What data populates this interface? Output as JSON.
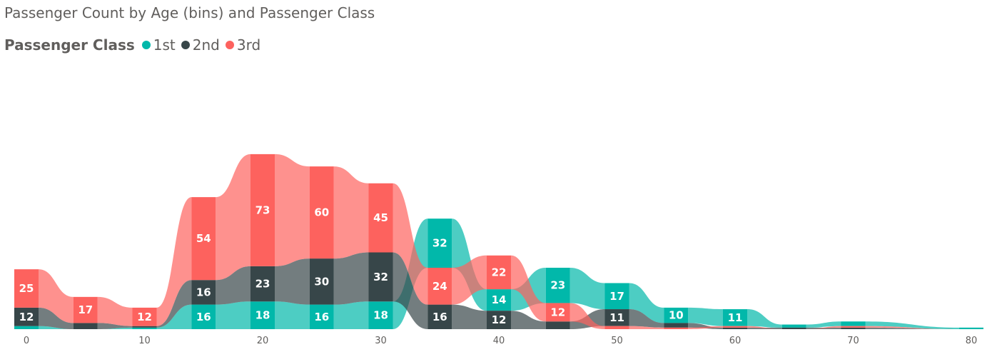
{
  "chart_data": {
    "type": "ribbon",
    "title": "Passenger Count by Age (bins) and Passenger Class",
    "legend": {
      "title": "Passenger Class",
      "position": "top-left",
      "items": [
        "1st",
        "2nd",
        "3rd"
      ]
    },
    "x": [
      0,
      5,
      10,
      15,
      20,
      25,
      30,
      35,
      40,
      45,
      50,
      55,
      60,
      65,
      70,
      80
    ],
    "x_ticks": [
      "0",
      "10",
      "20",
      "30",
      "40",
      "50",
      "60",
      "70",
      "80"
    ],
    "xlabel": "",
    "ylabel": "",
    "grid": false,
    "series": [
      {
        "name": "1st",
        "color": "#01b8aa",
        "values": [
          2,
          0,
          1,
          16,
          18,
          16,
          18,
          32,
          14,
          23,
          17,
          10,
          11,
          2,
          3,
          1
        ]
      },
      {
        "name": "2nd",
        "color": "#374649",
        "values": [
          12,
          4,
          1,
          16,
          23,
          30,
          32,
          16,
          12,
          5,
          11,
          3,
          1,
          1,
          1,
          0
        ]
      },
      {
        "name": "3rd",
        "color": "#fd625e",
        "values": [
          25,
          17,
          12,
          54,
          73,
          60,
          45,
          24,
          22,
          12,
          2,
          1,
          1,
          0,
          1,
          0
        ]
      }
    ]
  },
  "colors": {
    "1st": "#01b8aa",
    "2nd": "#374649",
    "3rd": "#fd625e",
    "text": "#605e5c"
  }
}
